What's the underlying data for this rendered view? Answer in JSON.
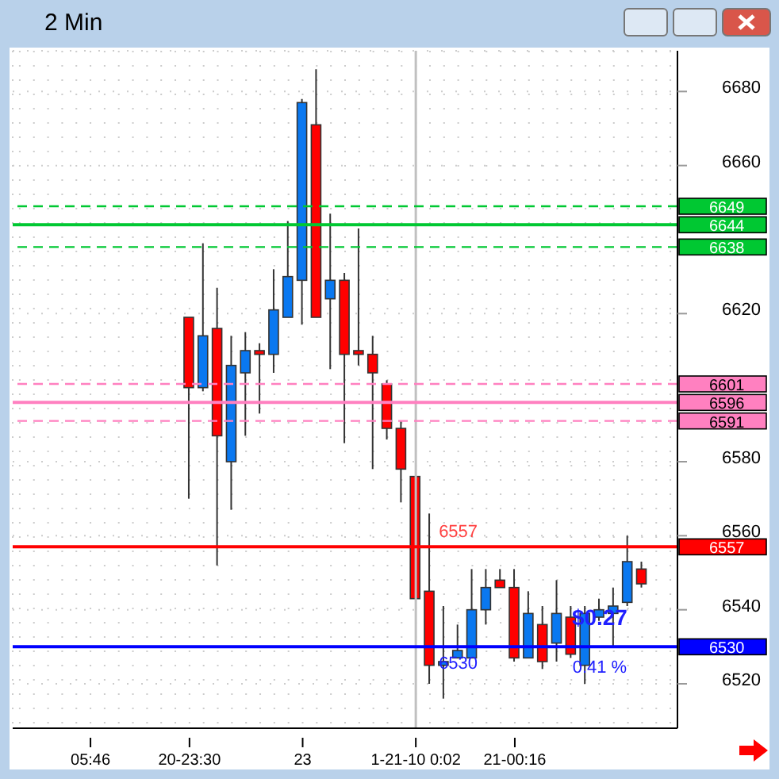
{
  "chart_data": {
    "type": "candlestick",
    "title": "2 Min",
    "categories": [
      null,
      null,
      null,
      null,
      null,
      "05:46",
      null,
      null,
      null,
      null,
      null,
      null,
      "20-23:30",
      null,
      null,
      null,
      null,
      null,
      null,
      null,
      "23",
      null,
      null,
      null,
      null,
      null,
      null,
      null,
      "1-21-10 0:02",
      null,
      null,
      null,
      null,
      null,
      null,
      "21-00:16",
      null,
      null,
      null,
      null,
      null,
      null,
      null,
      null,
      null,
      null,
      null
    ],
    "ohlc": [
      null,
      null,
      null,
      null,
      null,
      null,
      null,
      null,
      null,
      null,
      null,
      null,
      [
        6619,
        6619,
        6570,
        6600
      ],
      [
        6600,
        6639,
        6599,
        6614
      ],
      [
        6616,
        6627,
        6552,
        6587
      ],
      [
        6580,
        6614,
        6567,
        6606
      ],
      [
        6604,
        6615,
        6587,
        6610
      ],
      [
        6610,
        6612,
        6593,
        6609
      ],
      [
        6609,
        6632,
        6604,
        6621
      ],
      [
        6619,
        6645,
        6619,
        6630
      ],
      [
        6629,
        6678,
        6617,
        6677
      ],
      [
        6671,
        6686,
        6619,
        6619
      ],
      [
        6624,
        6647,
        6605,
        6629
      ],
      [
        6629,
        6631,
        6585,
        6609
      ],
      [
        6610,
        6643,
        6606,
        6609
      ],
      [
        6609,
        6614,
        6578,
        6604
      ],
      [
        6601,
        6602,
        6586,
        6589
      ],
      [
        6589,
        6591,
        6569,
        6578
      ],
      [
        6576,
        6576,
        6543,
        6543
      ],
      [
        6545,
        6566,
        6520,
        6525
      ],
      [
        6525,
        6541,
        6516,
        6526
      ],
      [
        6527,
        6536,
        6527,
        6529
      ],
      [
        6527,
        6551,
        6527,
        6540
      ],
      [
        6540,
        6551,
        6536,
        6546
      ],
      [
        6548,
        6551,
        6546,
        6546
      ],
      [
        6546,
        6551,
        6526,
        6527
      ],
      [
        6527,
        6545,
        6527,
        6539
      ],
      [
        6536,
        6541,
        6524,
        6526
      ],
      [
        6531,
        6548,
        6526,
        6539
      ],
      [
        6538,
        6541,
        6527,
        6528
      ],
      [
        6525,
        6541,
        6520,
        6539
      ],
      [
        6538,
        6543,
        6537,
        6540
      ],
      [
        6539,
        6546,
        6530,
        6541
      ],
      [
        6542,
        6560,
        6541,
        6553
      ],
      [
        6551,
        6553,
        6546,
        6547
      ],
      null,
      null
    ],
    "ylim": [
      6508,
      6691
    ],
    "yticks": [
      6680,
      6660,
      6620,
      6580,
      6560,
      6540,
      6520
    ],
    "grid": true,
    "ref_lines": [
      {
        "axis": "y",
        "value": 6649,
        "label": "6649",
        "color": "#00c832",
        "line_style": "dashed"
      },
      {
        "axis": "y",
        "value": 6644,
        "label": "6644",
        "color": "#00c832",
        "line_style": "solid"
      },
      {
        "axis": "y",
        "value": 6638,
        "label": "6638",
        "color": "#00c832",
        "line_style": "dashed"
      },
      {
        "axis": "y",
        "value": 6601,
        "label": "6601",
        "color": "#ff80c0",
        "line_style": "dashed"
      },
      {
        "axis": "y",
        "value": 6596,
        "label": "6596",
        "color": "#ff80c0",
        "line_style": "solid"
      },
      {
        "axis": "y",
        "value": 6591,
        "label": "6591",
        "color": "#ff80c0",
        "line_style": "dashed"
      },
      {
        "axis": "y",
        "value": 6557,
        "label": "6557",
        "color": "#ff0000",
        "line_style": "solid"
      },
      {
        "axis": "y",
        "value": 6530,
        "label": "6530",
        "color": "#0000ff",
        "line_style": "solid"
      },
      {
        "axis": "x",
        "value": "1-21-10 0:02",
        "color": "#c0c0c0",
        "line_style": "solid"
      }
    ],
    "annotations": [
      {
        "text": "6557",
        "y": 6557
      },
      {
        "text": "6530",
        "y": 6530
      },
      "$0.27",
      "0.41 %"
    ],
    "colors": [
      null,
      null,
      null,
      null,
      null,
      null,
      null,
      null,
      null,
      null,
      null,
      null,
      "#ff0000",
      "#0a78f0",
      "#ff0000",
      "#0a78f0",
      "#0a78f0",
      "#ff0000",
      "#0a78f0",
      "#0a78f0",
      "#0a78f0",
      "#ff0000",
      "#0a78f0",
      "#ff0000",
      "#ff0000",
      "#ff0000",
      "#ff0000",
      "#ff0000",
      "#ff0000",
      "#ff0000",
      "#0a78f0",
      "#0a78f0",
      "#0a78f0",
      "#0a78f0",
      "#ff0000",
      "#ff0000",
      "#0a78f0",
      "#ff0000",
      "#0a78f0",
      "#ff0000",
      "#0a78f0",
      "#0a78f0",
      "#0a78f0",
      "#0a78f0",
      "#ff0000",
      null,
      null
    ]
  }
}
